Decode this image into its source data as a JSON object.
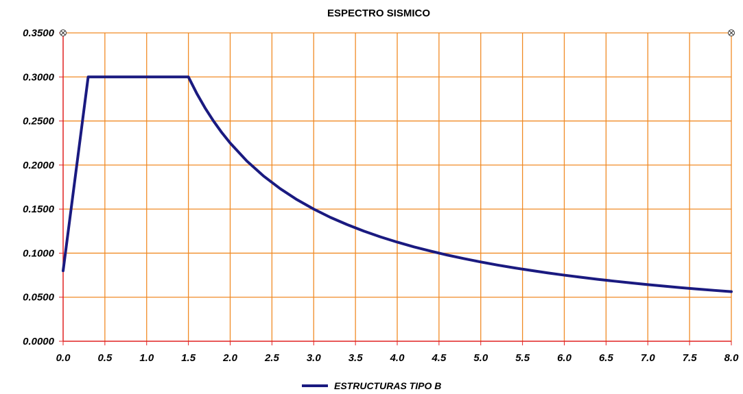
{
  "chart_data": {
    "type": "line",
    "title": "ESPECTRO SISMICO",
    "xlabel": "",
    "ylabel": "",
    "xlim": [
      0,
      8
    ],
    "ylim": [
      0,
      0.35
    ],
    "x_ticks": [
      "0.0",
      "0.5",
      "1.0",
      "1.5",
      "2.0",
      "2.5",
      "3.0",
      "3.5",
      "4.0",
      "4.5",
      "5.0",
      "5.5",
      "6.0",
      "6.5",
      "7.0",
      "7.5",
      "8.0"
    ],
    "y_ticks": [
      "0.0000",
      "0.0500",
      "0.1000",
      "0.1500",
      "0.2000",
      "0.2500",
      "0.3000",
      "0.3500"
    ],
    "grid": true,
    "legend": "bottom-center",
    "colors": {
      "series": "#1a1a80",
      "grid": "#f08a24",
      "axis": "#e02020"
    },
    "series": [
      {
        "name": "ESTRUCTURAS TIPO B",
        "x": [
          0.0,
          0.3,
          1.5,
          1.6,
          1.7,
          1.8,
          1.9,
          2.0,
          2.2,
          2.4,
          2.6,
          2.8,
          3.0,
          3.2,
          3.4,
          3.6,
          3.8,
          4.0,
          4.2,
          4.4,
          4.6,
          4.8,
          5.0,
          5.2,
          5.4,
          5.6,
          5.8,
          6.0,
          6.2,
          6.4,
          6.6,
          6.8,
          7.0,
          7.2,
          7.4,
          7.6,
          7.8,
          8.0
        ],
        "y": [
          0.08,
          0.3,
          0.3,
          0.2813,
          0.2647,
          0.25,
          0.2368,
          0.225,
          0.2045,
          0.1875,
          0.1731,
          0.1607,
          0.15,
          0.1406,
          0.1324,
          0.125,
          0.1184,
          0.1125,
          0.1071,
          0.1023,
          0.0978,
          0.0938,
          0.09,
          0.0865,
          0.0833,
          0.0804,
          0.0776,
          0.075,
          0.0726,
          0.0703,
          0.0682,
          0.0662,
          0.0643,
          0.0625,
          0.0608,
          0.0592,
          0.0577,
          0.0563
        ]
      }
    ]
  }
}
